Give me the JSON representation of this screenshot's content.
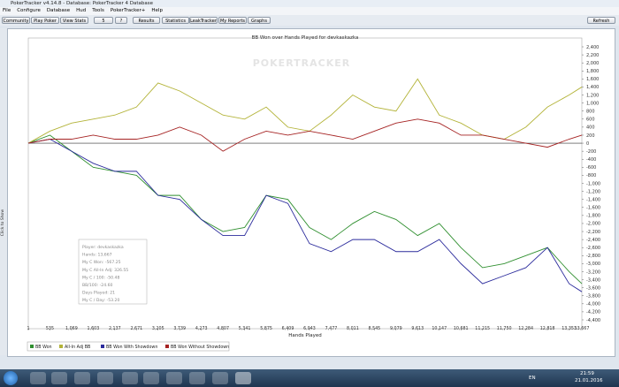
{
  "window": {
    "title": "PokerTracker v4.14.8 - Database: PokerTracker 4 Database",
    "menu": [
      "File",
      "Configure",
      "Database",
      "Hud",
      "Tools",
      "PokerTracker+",
      "Help"
    ],
    "toolbar": [
      "Community",
      "Play Poker",
      "View Stats",
      "5",
      "?",
      "Results",
      "Statistics",
      "LeakTracker",
      "My Reports",
      "Graphs"
    ],
    "refresh": "Refresh"
  },
  "sidebar_label": "Click to Show",
  "watermark": "POKERTRACKER",
  "stats_box": [
    "Player: devkaskazka",
    "Hands: 13,667",
    "My C Won: -567.25",
    "My C All-In Adj: 326.55",
    "My C / 100: -50.48",
    "BB/100: -24.60",
    "Days Played: 21",
    "My C / Day: -53.20"
  ],
  "chart_data": {
    "type": "line",
    "title": "BB Won over Hands Played for devkaskazka",
    "x_label": "Hands Played",
    "x": [
      1,
      535,
      1069,
      1603,
      2137,
      2671,
      3205,
      3739,
      4273,
      4807,
      5341,
      5875,
      6409,
      6943,
      7477,
      8011,
      8545,
      9079,
      9613,
      10147,
      10681,
      11215,
      11750,
      12284,
      12818,
      13353,
      13667
    ],
    "xlim": [
      1,
      13667
    ],
    "xticks": [
      1,
      535,
      {
        "value": 1069,
        "label": "1,069"
      },
      {
        "value": 1603,
        "label": "1,603"
      },
      {
        "value": 2137,
        "label": "2,137"
      },
      {
        "value": 2671,
        "label": "2,671"
      },
      {
        "value": 3205,
        "label": "3,205"
      },
      {
        "value": 3739,
        "label": "3,739"
      },
      {
        "value": 4273,
        "label": "4,273"
      },
      {
        "value": 4807,
        "label": "4,807"
      },
      {
        "value": 5341,
        "label": "5,341"
      },
      {
        "value": 5875,
        "label": "5,875"
      },
      {
        "value": 6409,
        "label": "6,409"
      },
      {
        "value": 6943,
        "label": "6,943"
      },
      {
        "value": 7477,
        "label": "7,477"
      },
      {
        "value": 8011,
        "label": "8,011"
      },
      {
        "value": 8545,
        "label": "8,545"
      },
      {
        "value": 9079,
        "label": "9,079"
      },
      {
        "value": 9613,
        "label": "9,613"
      },
      {
        "value": 10147,
        "label": "10,147"
      },
      {
        "value": 10681,
        "label": "10,681"
      },
      {
        "value": 11215,
        "label": "11,215"
      },
      {
        "value": 11750,
        "label": "11,750"
      },
      {
        "value": 12284,
        "label": "12,284"
      },
      {
        "value": 12818,
        "label": "12,818"
      },
      {
        "value": 13353,
        "label": "13,353"
      },
      {
        "value": 13667,
        "label": "13,667"
      }
    ],
    "ylim": [
      -4400,
      2400
    ],
    "yticks": [
      {
        "value": 2400,
        "label": "2,400"
      },
      {
        "value": 2200,
        "label": "2,200"
      },
      {
        "value": 2000,
        "label": "2,000"
      },
      {
        "value": 1800,
        "label": "1,800"
      },
      {
        "value": 1600,
        "label": "1,600"
      },
      {
        "value": 1400,
        "label": "1,400"
      },
      {
        "value": 1200,
        "label": "1,200"
      },
      {
        "value": 1000,
        "label": "1,000"
      },
      800,
      600,
      400,
      200,
      0,
      -200,
      -400,
      -600,
      -800,
      {
        "value": -1000,
        "label": "-1,000"
      },
      {
        "value": -1200,
        "label": "-1,200"
      },
      {
        "value": -1400,
        "label": "-1,400"
      },
      {
        "value": -1600,
        "label": "-1,600"
      },
      {
        "value": -1800,
        "label": "-1,800"
      },
      {
        "value": -2000,
        "label": "-2,000"
      },
      {
        "value": -2200,
        "label": "-2,200"
      },
      {
        "value": -2400,
        "label": "-2,400"
      },
      {
        "value": -2600,
        "label": "-2,600"
      },
      {
        "value": -2800,
        "label": "-2,800"
      },
      {
        "value": -3000,
        "label": "-3,000"
      },
      {
        "value": -3200,
        "label": "-3,200"
      },
      {
        "value": -3400,
        "label": "-3,400"
      },
      {
        "value": -3600,
        "label": "-3,600"
      },
      {
        "value": -3800,
        "label": "-3,800"
      },
      {
        "value": -4000,
        "label": "-4,000"
      },
      {
        "value": -4200,
        "label": "-4,200"
      },
      {
        "value": -4400,
        "label": "-4,400"
      }
    ],
    "y_axis_side": "right",
    "grid": false,
    "zero_line": true,
    "legend_position": "bottom-left",
    "series": [
      {
        "name": "BB Won",
        "color": "#2f8f2f",
        "values": [
          0,
          200,
          -200,
          -600,
          -700,
          -800,
          -1300,
          -1300,
          -1900,
          -2200,
          -2100,
          -1300,
          -1400,
          -2100,
          -2400,
          -2000,
          -1700,
          -1900,
          -2300,
          -2000,
          -2600,
          -3100,
          -3000,
          -2800,
          -2600,
          -3200,
          -3500
        ]
      },
      {
        "name": "All-In Adj BB",
        "color": "#b3b338",
        "values": [
          0,
          300,
          500,
          600,
          700,
          900,
          1500,
          1300,
          1000,
          700,
          600,
          900,
          400,
          300,
          700,
          1200,
          900,
          800,
          1600,
          700,
          500,
          200,
          100,
          400,
          900,
          1200,
          1400
        ]
      },
      {
        "name": "BB Won With Showdown",
        "color": "#2b2b9c",
        "values": [
          0,
          100,
          -200,
          -500,
          -700,
          -700,
          -1300,
          -1400,
          -1900,
          -2300,
          -2300,
          -1300,
          -1500,
          -2500,
          -2700,
          -2400,
          -2400,
          -2700,
          -2700,
          -2400,
          -3000,
          -3500,
          -3300,
          -3100,
          -2600,
          -3500,
          -3700
        ]
      },
      {
        "name": "BB Won Without Showdown",
        "color": "#a52222",
        "values": [
          0,
          100,
          100,
          200,
          100,
          100,
          200,
          400,
          200,
          -200,
          100,
          300,
          200,
          300,
          200,
          100,
          300,
          500,
          600,
          500,
          200,
          200,
          100,
          0,
          -100,
          100,
          200
        ]
      }
    ]
  },
  "taskbar": {
    "language": "EN",
    "time": "21:59",
    "date": "21.01.2016"
  }
}
